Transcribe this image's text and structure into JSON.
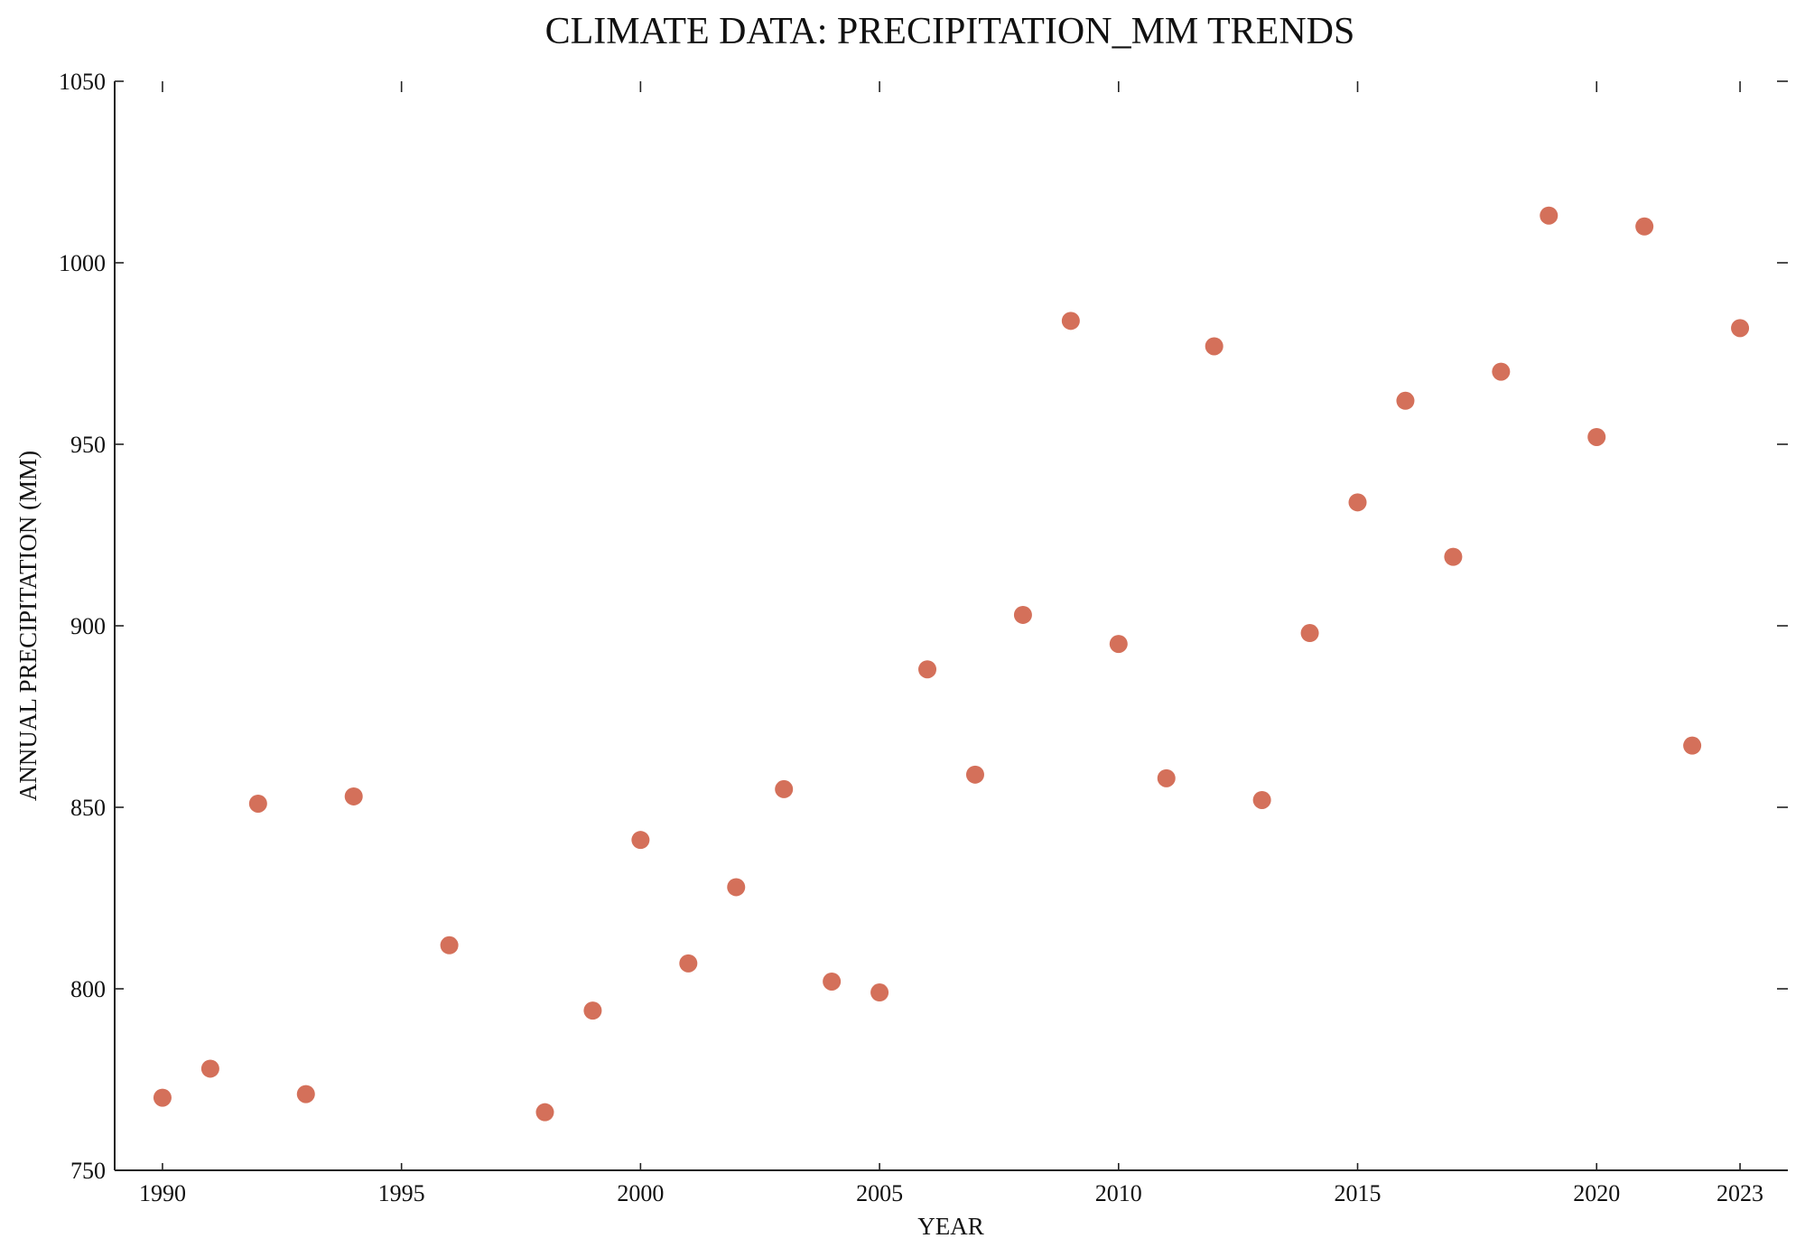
{
  "chart_data": {
    "type": "scatter",
    "title": "CLIMATE DATA: PRECIPITATION_MM TRENDS",
    "xlabel": "YEAR",
    "ylabel": "ANNUAL PRECIPITATION (MM)",
    "xlim": [
      1989,
      2024
    ],
    "ylim": [
      750,
      1050
    ],
    "x_ticks": [
      1990,
      1995,
      2000,
      2005,
      2010,
      2015,
      2020,
      2023
    ],
    "y_ticks": [
      750,
      800,
      850,
      900,
      950,
      1000,
      1050
    ],
    "grid": false,
    "legend": "none",
    "marker_color": "#d4705a",
    "series": [
      {
        "x": [
          1990,
          1991,
          1992,
          1993,
          1994,
          1996,
          1998,
          1999,
          2000,
          2001,
          2002,
          2003,
          2004,
          2005,
          2006,
          2007,
          2008,
          2009,
          2010,
          2011,
          2012,
          2013,
          2014,
          2015,
          2016,
          2017,
          2018,
          2019,
          2020,
          2021,
          2022,
          2023
        ],
        "y": [
          770,
          778,
          851,
          771,
          853,
          812,
          766,
          794,
          841,
          807,
          828,
          855,
          802,
          799,
          888,
          859,
          903,
          984,
          895,
          858,
          977,
          852,
          898,
          934,
          962,
          919,
          970,
          1013,
          952,
          1010,
          867,
          982
        ]
      }
    ]
  }
}
